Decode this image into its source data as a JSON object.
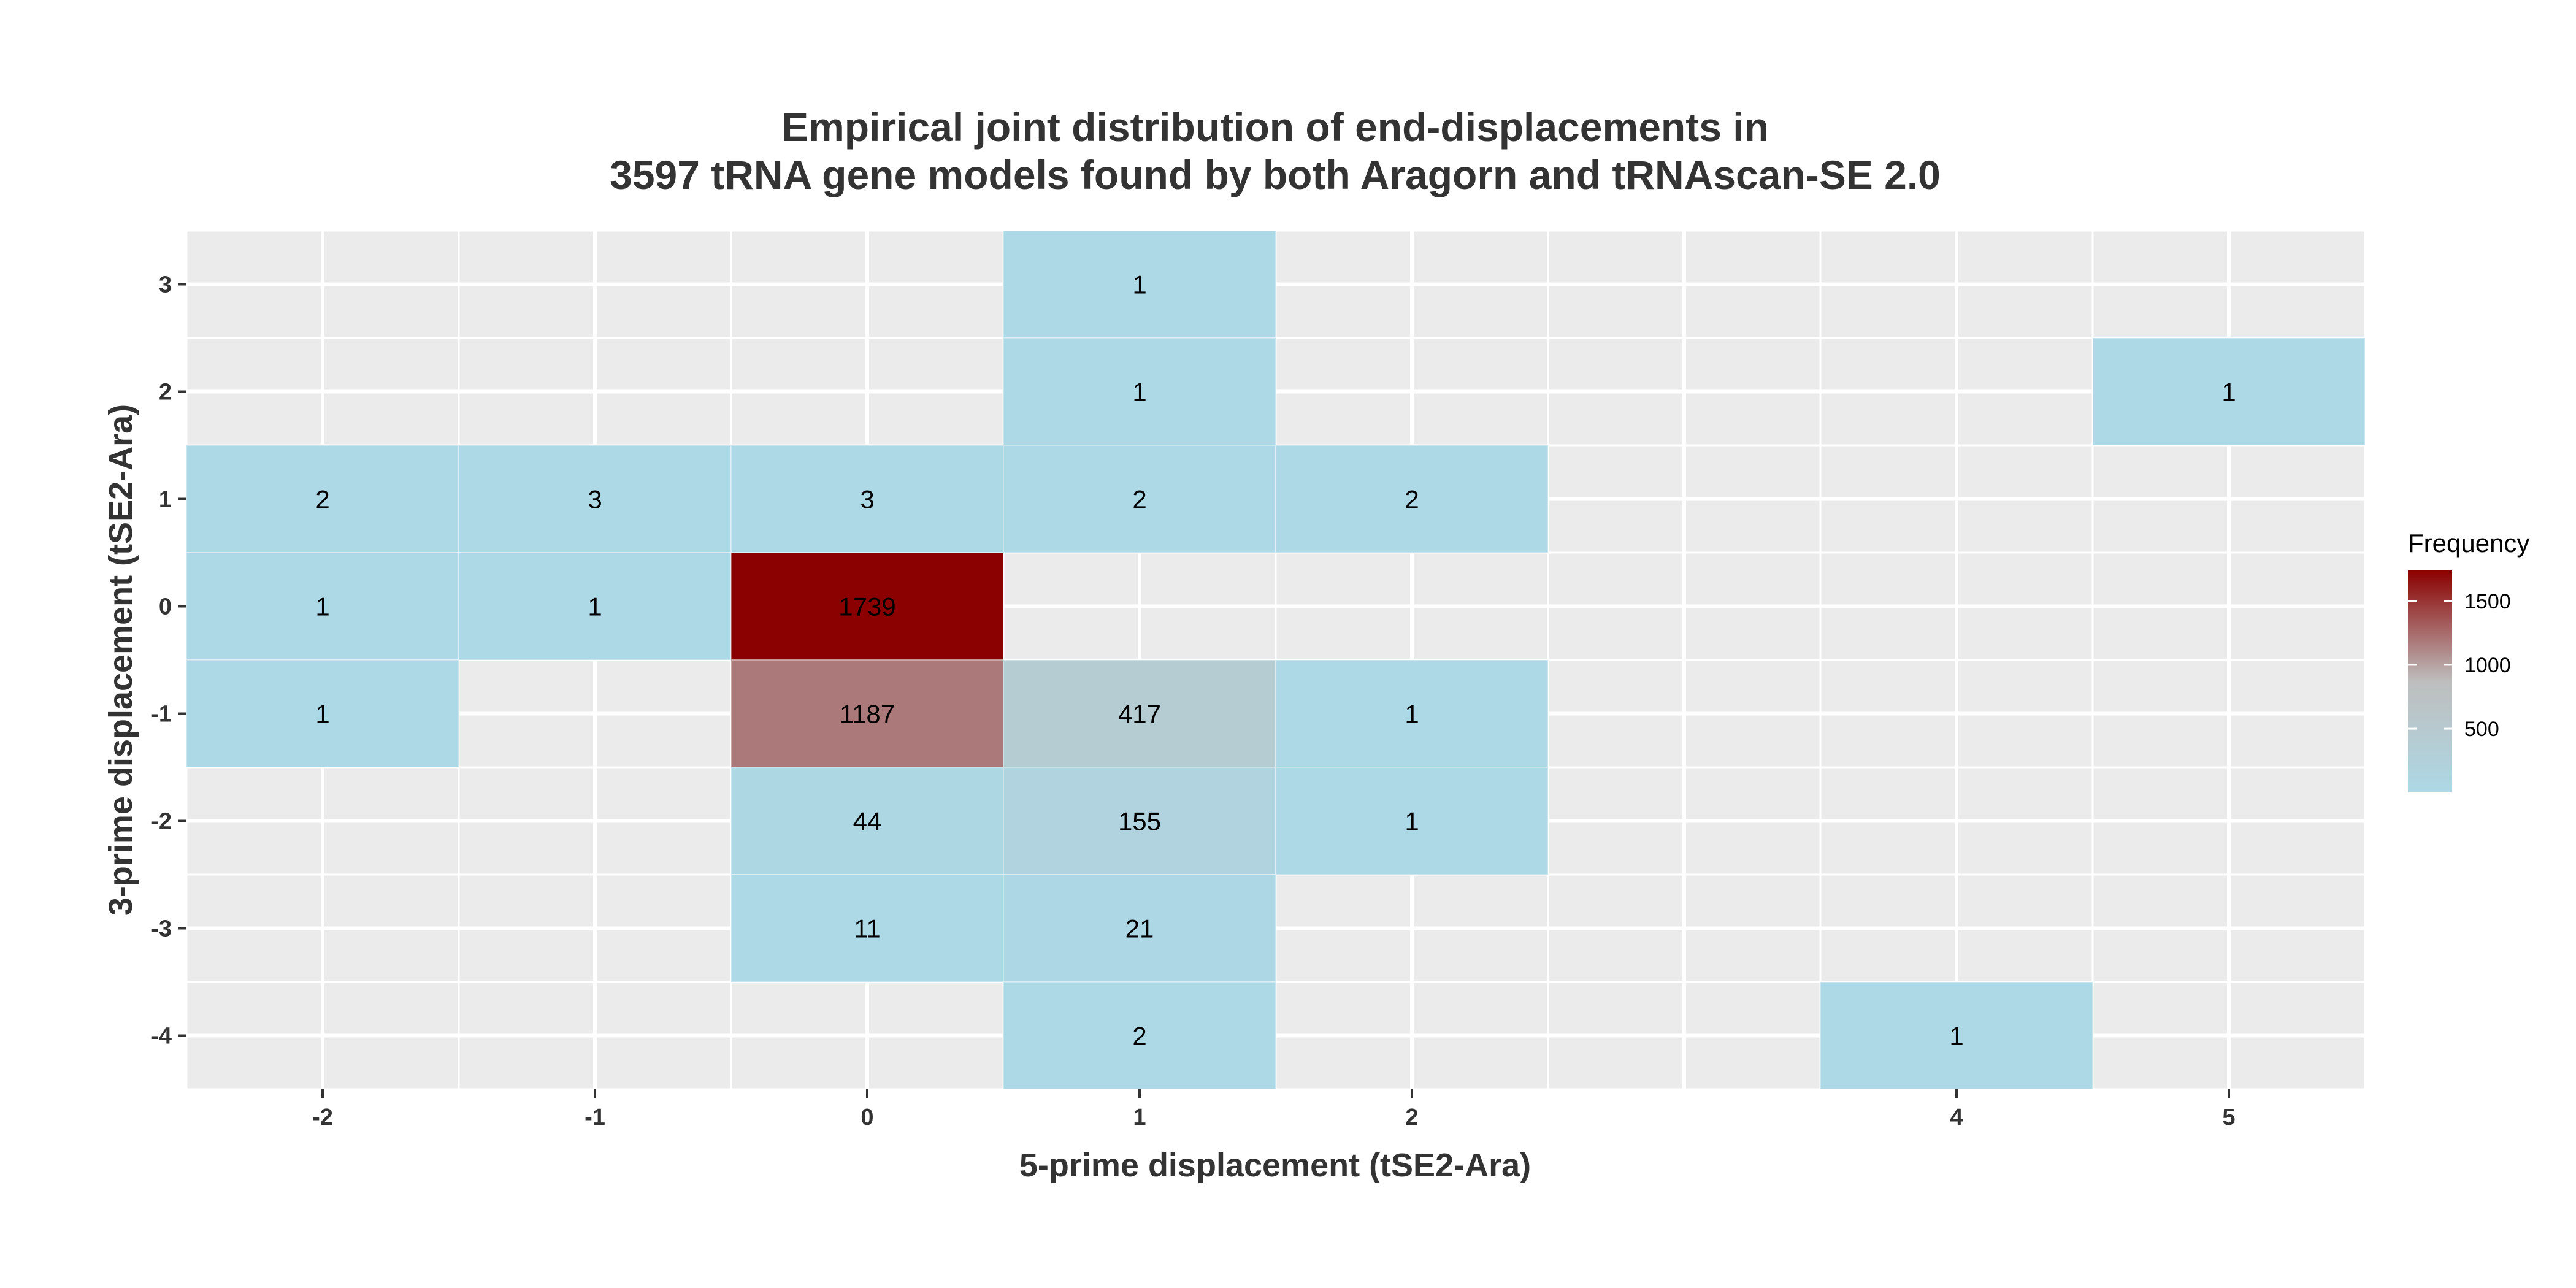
{
  "chart_data": {
    "type": "heatmap",
    "title_lines": [
      "Empirical joint distribution of end-displacements in",
      "3597 tRNA gene models found by both Aragorn and tRNAscan-SE 2.0"
    ],
    "xlabel": "5-prime displacement (tSE2-Ara)",
    "ylabel": "3-prime displacement (tSE2-Ara)",
    "x_ticks": [
      -2,
      -1,
      0,
      1,
      2,
      4,
      5
    ],
    "y_ticks": [
      3,
      2,
      1,
      0,
      -1,
      -2,
      -3,
      -4
    ],
    "xlim": [
      -2.5,
      5.5
    ],
    "ylim": [
      -4.5,
      3.5
    ],
    "cells": [
      {
        "x": 1,
        "y": 3,
        "value": 1
      },
      {
        "x": 1,
        "y": 2,
        "value": 1
      },
      {
        "x": 5,
        "y": 2,
        "value": 1
      },
      {
        "x": -2,
        "y": 1,
        "value": 2
      },
      {
        "x": -1,
        "y": 1,
        "value": 3
      },
      {
        "x": 0,
        "y": 1,
        "value": 3
      },
      {
        "x": 1,
        "y": 1,
        "value": 2
      },
      {
        "x": 2,
        "y": 1,
        "value": 2
      },
      {
        "x": -2,
        "y": 0,
        "value": 1
      },
      {
        "x": -1,
        "y": 0,
        "value": 1
      },
      {
        "x": 0,
        "y": 0,
        "value": 1739
      },
      {
        "x": -2,
        "y": -1,
        "value": 1
      },
      {
        "x": 0,
        "y": -1,
        "value": 1187
      },
      {
        "x": 1,
        "y": -1,
        "value": 417
      },
      {
        "x": 2,
        "y": -1,
        "value": 1
      },
      {
        "x": 0,
        "y": -2,
        "value": 44
      },
      {
        "x": 1,
        "y": -2,
        "value": 155
      },
      {
        "x": 2,
        "y": -2,
        "value": 1
      },
      {
        "x": 0,
        "y": -3,
        "value": 11
      },
      {
        "x": 1,
        "y": -3,
        "value": 21
      },
      {
        "x": 1,
        "y": -4,
        "value": 2
      },
      {
        "x": 4,
        "y": -4,
        "value": 1
      }
    ],
    "legend": {
      "title": "Frequency",
      "placement": "right",
      "breaks": [
        500,
        1000,
        1500
      ],
      "range": [
        1,
        1739
      ]
    },
    "colors": {
      "low": "#add8e6",
      "mid": "#bebebe",
      "high": "#8b0000",
      "panel_background": "#ebebeb",
      "grid": "#ffffff"
    },
    "grid": true
  }
}
